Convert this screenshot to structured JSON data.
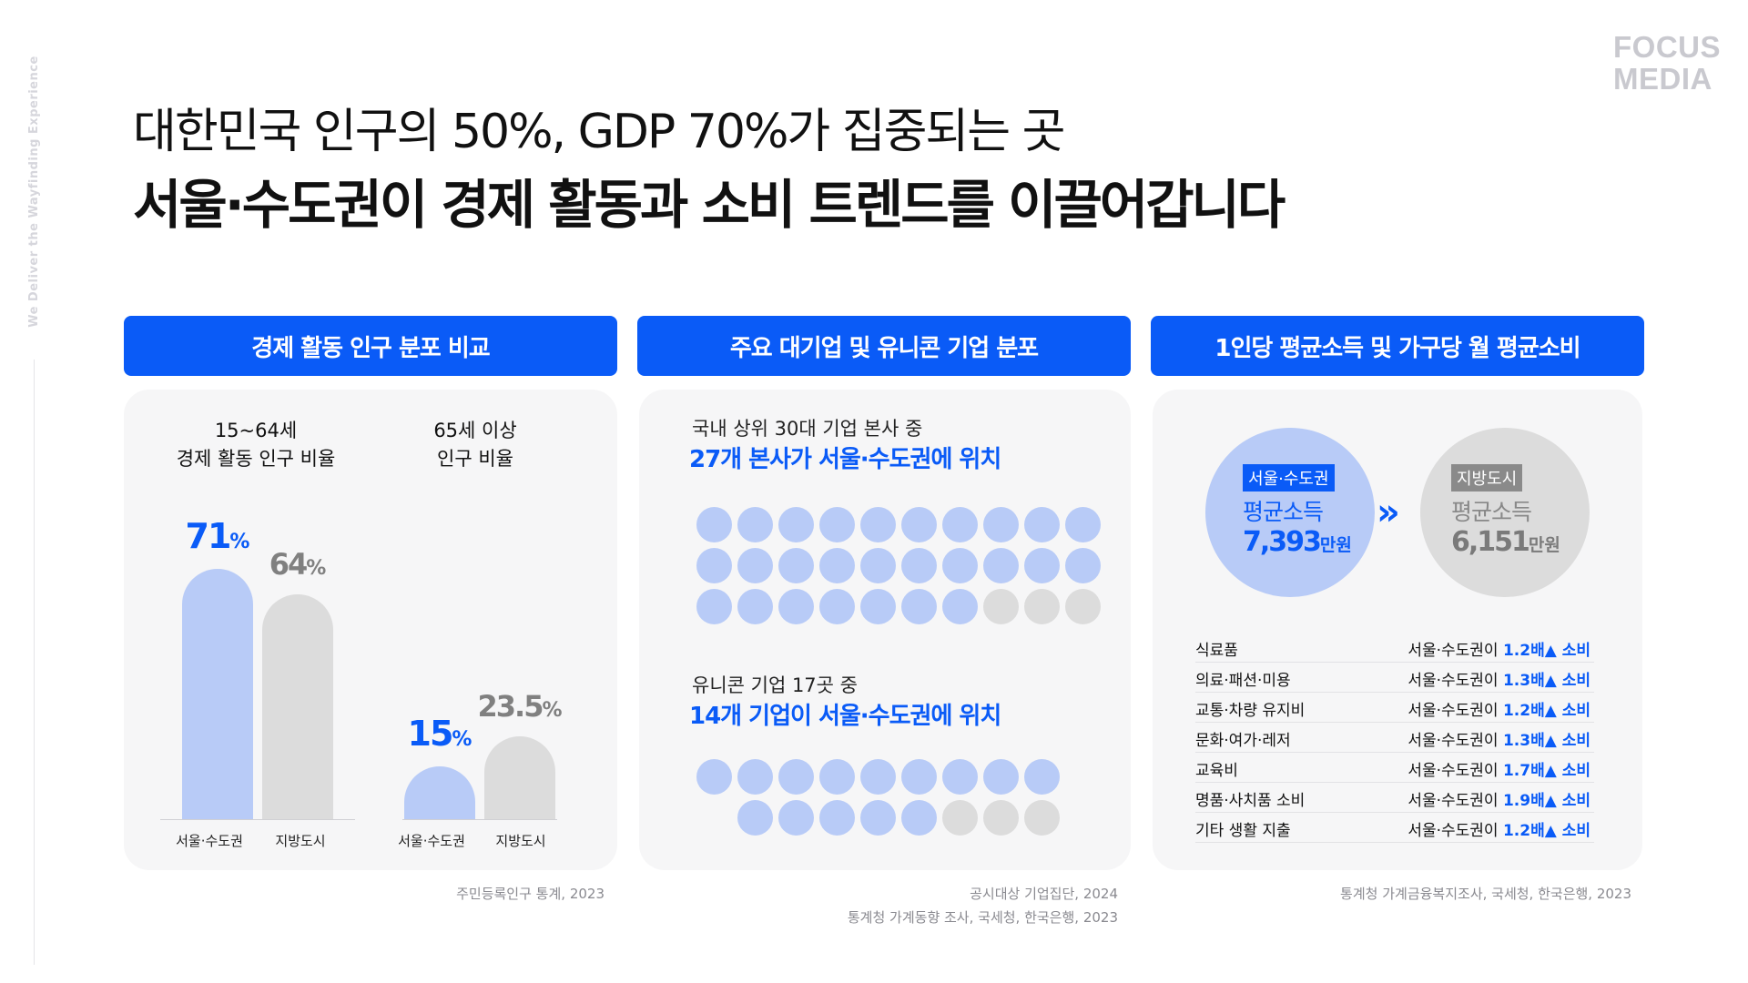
{
  "side_tag": "We Deliver the Wayfinding Experience",
  "logo": {
    "line1": "FOCUS",
    "line2": "MEDIA"
  },
  "headline": {
    "line1": "대한민국 인구의 50%, GDP 70%가 집중되는 곳",
    "line2": "서울·수도권이 경제 활동과 소비 트렌드를 이끌어갑니다"
  },
  "colors": {
    "accent": "#0a5bf7",
    "bar_blue": "#b8cbf7",
    "bar_gray": "#dcdcdc"
  },
  "panel1": {
    "header": "경제 활동 인구 분포 비교",
    "groups": [
      {
        "title_line1": "15~64세",
        "title_line2": "경제 활동 인구 비율",
        "bars": [
          {
            "label": "서울·수도권",
            "value": 71,
            "display": "71",
            "unit": "%"
          },
          {
            "label": "지방도시",
            "value": 64,
            "display": "64",
            "unit": "%"
          }
        ]
      },
      {
        "title_line1": "65세 이상",
        "title_line2": "인구 비율",
        "bars": [
          {
            "label": "서울·수도권",
            "value": 15,
            "display": "15",
            "unit": "%"
          },
          {
            "label": "지방도시",
            "value": 23.5,
            "display": "23.5",
            "unit": "%"
          }
        ]
      }
    ],
    "source": "주민등록인구 통계, 2023"
  },
  "panel2": {
    "header": "주요 대기업 및 유니콘 기업 분포",
    "block1": {
      "line1": "국내 상위 30대 기업 본사 중",
      "line2": "27개 본사가 서울·수도권에 위치",
      "filled": 27,
      "total": 30
    },
    "block2": {
      "line1": "유니콘 기업 17곳 중",
      "line2": "14개 기업이 서울·수도권에 위치",
      "filled": 14,
      "total": 17
    },
    "source_line1": "공시대상 기업집단, 2024",
    "source_line2": "통계청 가계동향 조사, 국세청, 한국은행, 2023"
  },
  "panel3": {
    "header": "1인당 평균소득 및 가구당 월 평균소비",
    "capital": {
      "tag": "서울·수도권",
      "label": "평균소득",
      "value": "7,393",
      "unit": "만원"
    },
    "local": {
      "tag": "지방도시",
      "label": "평균소득",
      "value": "6,151",
      "unit": "만원"
    },
    "arrow": "»",
    "rows": [
      {
        "category": "식료품",
        "prefix": "서울·수도권이",
        "ratio": "1.2배▲ 소비"
      },
      {
        "category": "의료·패션·미용",
        "prefix": "서울·수도권이",
        "ratio": "1.3배▲ 소비"
      },
      {
        "category": "교통·차량 유지비",
        "prefix": "서울·수도권이",
        "ratio": "1.2배▲ 소비"
      },
      {
        "category": "문화·여가·레저",
        "prefix": "서울·수도권이",
        "ratio": "1.3배▲ 소비"
      },
      {
        "category": "교육비",
        "prefix": "서울·수도권이",
        "ratio": "1.7배▲ 소비"
      },
      {
        "category": "명품·사치품 소비",
        "prefix": "서울·수도권이",
        "ratio": "1.9배▲ 소비"
      },
      {
        "category": "기타 생활 지출",
        "prefix": "서울·수도권이",
        "ratio": "1.2배▲ 소비"
      }
    ],
    "source": "통계청 가계금융복지조사, 국세청, 한국은행, 2023"
  }
}
